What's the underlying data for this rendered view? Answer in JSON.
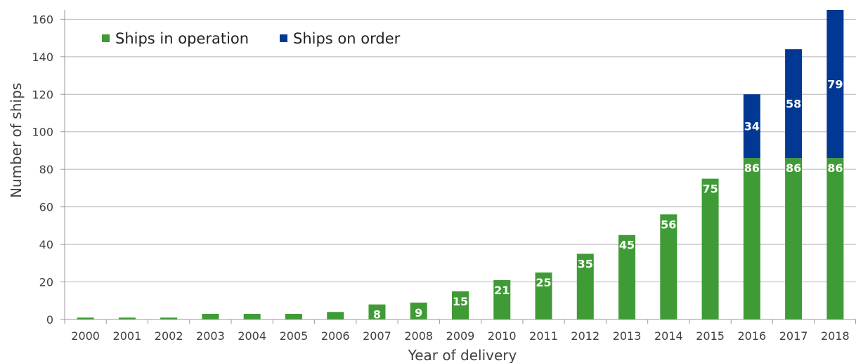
{
  "chart_data": {
    "type": "bar",
    "stacked": true,
    "title": "",
    "xlabel": "Year of delivery",
    "ylabel": "Number of ships",
    "ylim": [
      0,
      165
    ],
    "yticks": [
      0,
      20,
      40,
      60,
      80,
      100,
      120,
      140,
      160
    ],
    "grid": true,
    "legend_position": "top-left",
    "categories": [
      "2000",
      "2001",
      "2002",
      "2003",
      "2004",
      "2005",
      "2006",
      "2007",
      "2008",
      "2009",
      "2010",
      "2011",
      "2012",
      "2013",
      "2014",
      "2015",
      "2016",
      "2017",
      "2018"
    ],
    "series": [
      {
        "name": "Ships in operation",
        "color": "#3f9b35",
        "values": [
          1,
          1,
          1,
          3,
          3,
          3,
          4,
          8,
          9,
          15,
          21,
          25,
          35,
          45,
          56,
          75,
          86,
          86,
          86
        ],
        "labels": [
          "",
          "",
          "",
          "",
          "",
          "",
          "",
          "8",
          "9",
          "15",
          "21",
          "25",
          "35",
          "45",
          "56",
          "75",
          "86",
          "86",
          "86"
        ]
      },
      {
        "name": "Ships on order",
        "color": "#003893",
        "values": [
          0,
          0,
          0,
          0,
          0,
          0,
          0,
          0,
          0,
          0,
          0,
          0,
          0,
          0,
          0,
          0,
          34,
          58,
          79
        ],
        "labels": [
          "",
          "",
          "",
          "",
          "",
          "",
          "",
          "",
          "",
          "",
          "",
          "",
          "",
          "",
          "",
          "",
          "34",
          "58",
          "79"
        ]
      }
    ]
  }
}
